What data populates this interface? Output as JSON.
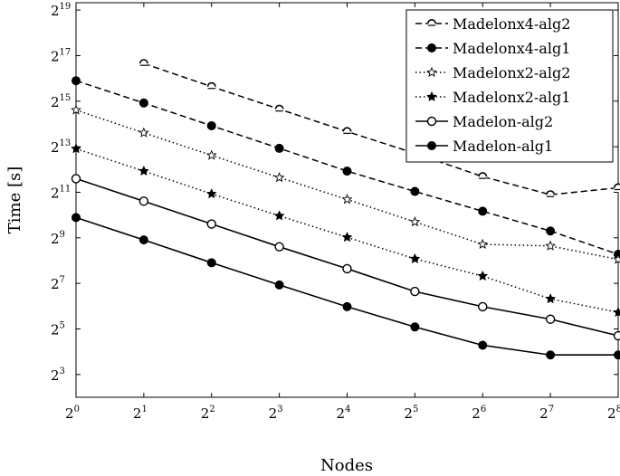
{
  "chart_data": {
    "type": "line",
    "xlabel": "Nodes",
    "ylabel": "Time [s]",
    "x_scale": "log2",
    "y_scale": "log2",
    "xlim": [
      1,
      256
    ],
    "ylim": [
      4,
      655360
    ],
    "x_ticks": [
      {
        "base": "2",
        "exp": "0",
        "value": 1
      },
      {
        "base": "2",
        "exp": "1",
        "value": 2
      },
      {
        "base": "2",
        "exp": "2",
        "value": 4
      },
      {
        "base": "2",
        "exp": "3",
        "value": 8
      },
      {
        "base": "2",
        "exp": "4",
        "value": 16
      },
      {
        "base": "2",
        "exp": "5",
        "value": 32
      },
      {
        "base": "2",
        "exp": "6",
        "value": 64
      },
      {
        "base": "2",
        "exp": "7",
        "value": 128
      },
      {
        "base": "2",
        "exp": "8",
        "value": 256
      }
    ],
    "y_ticks": [
      {
        "base": "2",
        "exp": "3",
        "value": 8
      },
      {
        "base": "2",
        "exp": "5",
        "value": 32
      },
      {
        "base": "2",
        "exp": "7",
        "value": 128
      },
      {
        "base": "2",
        "exp": "9",
        "value": 512
      },
      {
        "base": "2",
        "exp": "11",
        "value": 2048
      },
      {
        "base": "2",
        "exp": "13",
        "value": 8192
      },
      {
        "base": "2",
        "exp": "15",
        "value": 32768
      },
      {
        "base": "2",
        "exp": "17",
        "value": 131072
      },
      {
        "base": "2",
        "exp": "19",
        "value": 524288
      }
    ],
    "grid": false,
    "legend_position": "top-right",
    "series": [
      {
        "name": "Madelonx4-alg2",
        "line_style": "dashed",
        "marker": "half-circle-open",
        "x": [
          2,
          4,
          8,
          16,
          32,
          64,
          128,
          256
        ],
        "y": [
          103000,
          51000,
          25700,
          13000,
          6700,
          3300,
          1900,
          2350
        ]
      },
      {
        "name": "Madelonx4-alg1",
        "line_style": "dashed",
        "marker": "filled-circle",
        "x": [
          1,
          2,
          4,
          8,
          16,
          32,
          64,
          128,
          256
        ],
        "y": [
          61000,
          31000,
          15500,
          7800,
          3900,
          2100,
          1150,
          630,
          310
        ]
      },
      {
        "name": "Madelonx2-alg2",
        "line_style": "dotted",
        "marker": "star-open",
        "x": [
          1,
          2,
          4,
          8,
          16,
          32,
          64,
          128,
          256
        ],
        "y": [
          25000,
          12500,
          6300,
          3200,
          1650,
          830,
          420,
          400,
          265
        ]
      },
      {
        "name": "Madelonx2-alg1",
        "line_style": "dotted",
        "marker": "star-filled",
        "x": [
          1,
          2,
          4,
          8,
          16,
          32,
          64,
          128,
          256
        ],
        "y": [
          7700,
          3900,
          1950,
          1000,
          520,
          270,
          160,
          80,
          53
        ]
      },
      {
        "name": "Madelon-alg2",
        "line_style": "solid",
        "marker": "open-circle",
        "x": [
          1,
          2,
          4,
          8,
          16,
          32,
          64,
          128,
          256
        ],
        "y": [
          3100,
          1560,
          780,
          390,
          200,
          100,
          63,
          43,
          26
        ]
      },
      {
        "name": "Madelon-alg1",
        "line_style": "solid",
        "marker": "filled-circle",
        "x": [
          1,
          2,
          4,
          8,
          16,
          32,
          64,
          128,
          256
        ],
        "y": [
          950,
          480,
          240,
          122,
          63,
          34,
          19.5,
          14.5,
          14.5
        ]
      }
    ]
  }
}
